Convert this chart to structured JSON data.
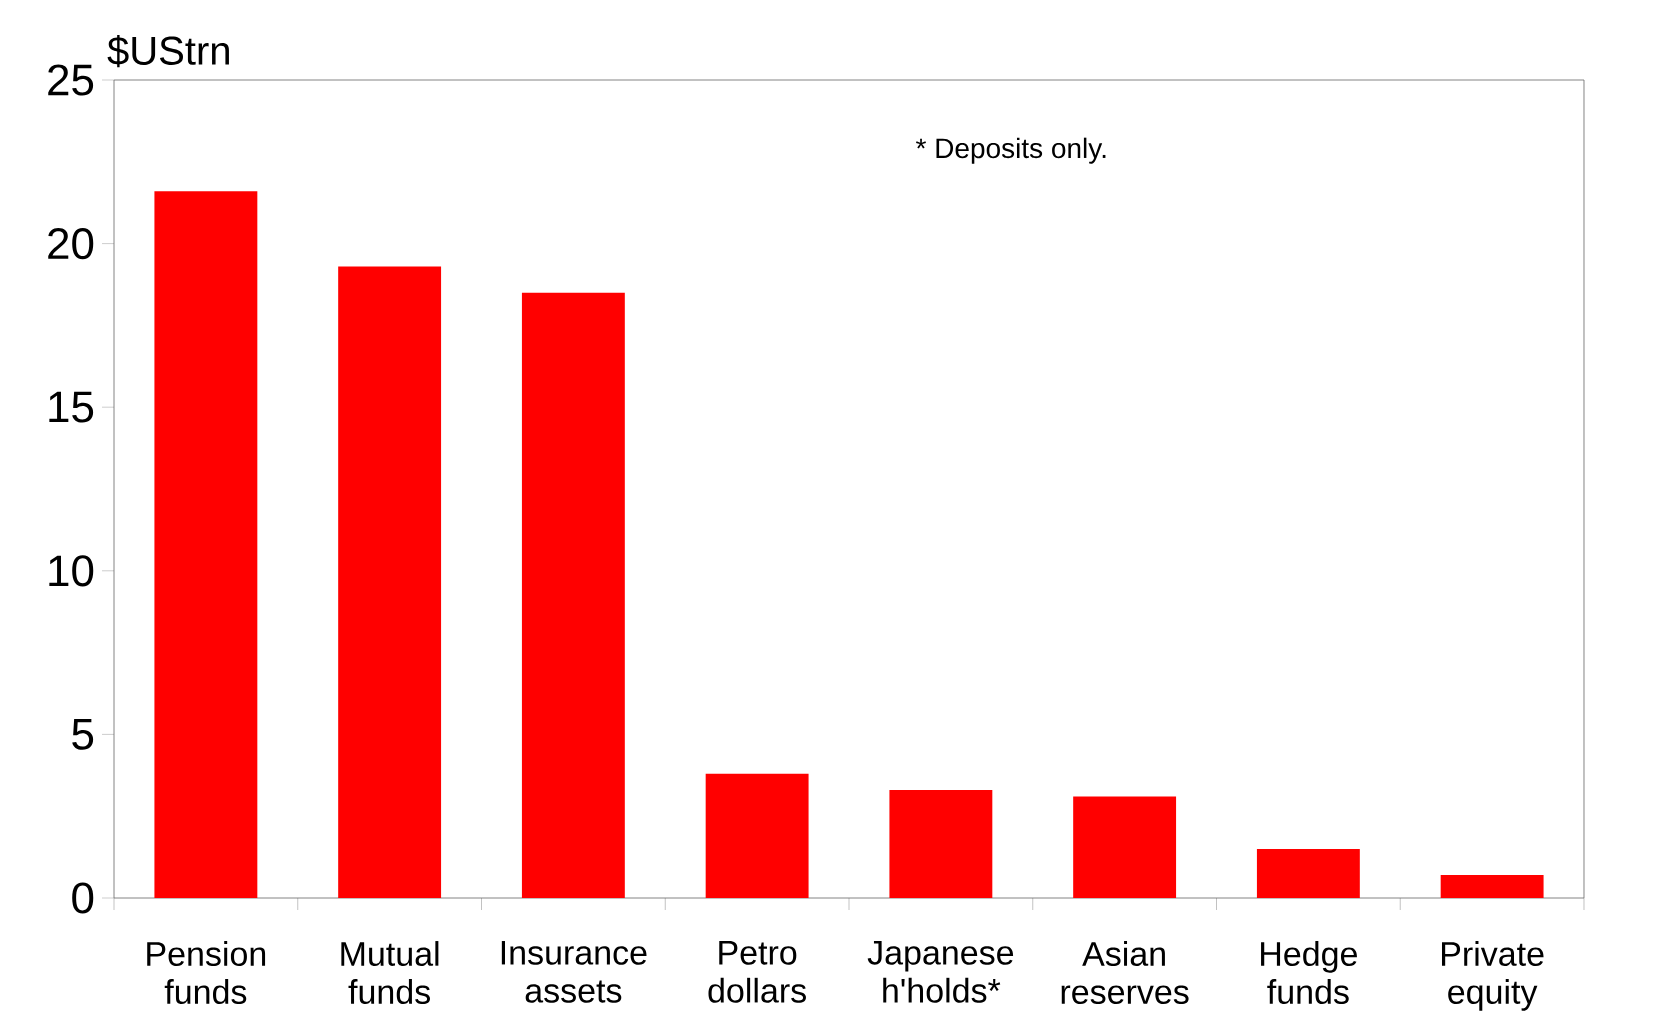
{
  "chart_data": {
    "type": "bar",
    "ylabel": "$UStrn",
    "categories": [
      "Pension funds",
      "Mutual funds",
      "Insurance assets",
      "Petro dollars",
      "Japanese h'holds*",
      "Asian reserves",
      "Hedge funds",
      "Private equity"
    ],
    "values": [
      21.6,
      19.3,
      18.5,
      3.8,
      3.3,
      3.1,
      1.5,
      0.7
    ],
    "color": "#ff0000",
    "ylim": [
      0,
      25
    ],
    "yticks": [
      0,
      5,
      10,
      15,
      20,
      25
    ],
    "annotations": [
      "* Deposits only."
    ]
  }
}
